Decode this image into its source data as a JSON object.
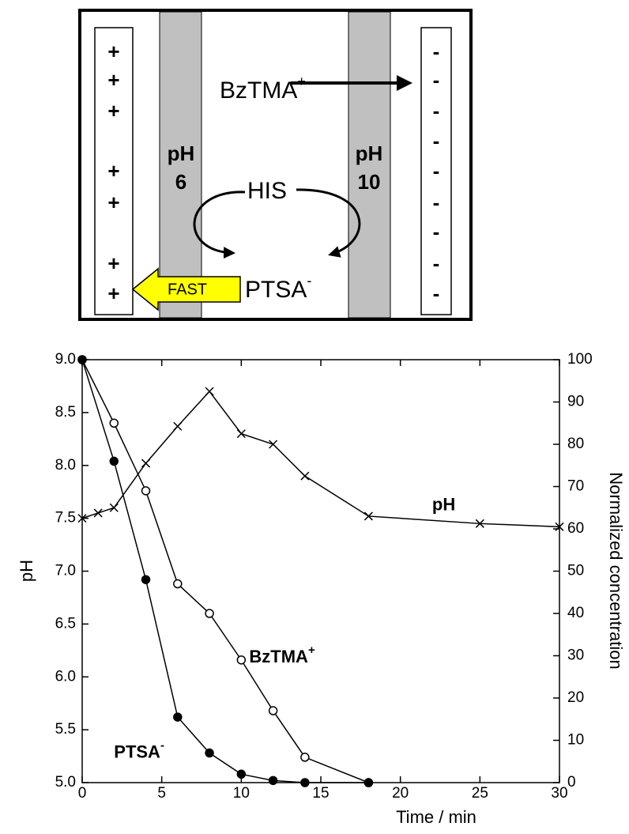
{
  "diagram": {
    "left_signs": [
      "+",
      "+",
      "+",
      "+",
      "+",
      "+",
      "+"
    ],
    "right_signs": [
      "-",
      "-",
      "-",
      "-",
      "-",
      "-",
      "-",
      "-",
      "-"
    ],
    "left_band": [
      "pH",
      "6"
    ],
    "right_band": [
      "pH",
      "10"
    ],
    "cation": {
      "text": "BzTMA",
      "sup": "+"
    },
    "zwitterion": "HIS",
    "anion": {
      "text": "PTSA",
      "sup": "-"
    },
    "arrow_label": "FAST"
  },
  "chart_data": {
    "type": "line",
    "xlabel": "Time / min",
    "ylabel": "pH",
    "y2label": "Normalized concentration",
    "xlim": [
      0,
      30
    ],
    "xticks": [
      0,
      5,
      10,
      15,
      20,
      25,
      30
    ],
    "ylim": [
      5,
      9
    ],
    "yticks": [
      {
        "value": 5,
        "label": "5.0"
      },
      {
        "value": 5.5,
        "label": "5.5"
      },
      {
        "value": 6,
        "label": "6.0"
      },
      {
        "value": 6.5,
        "label": "6.5"
      },
      {
        "value": 7,
        "label": "7.0"
      },
      {
        "value": 7.5,
        "label": "7.5"
      },
      {
        "value": 8,
        "label": "8.0"
      },
      {
        "value": 8.5,
        "label": "8.5"
      },
      {
        "value": 9,
        "label": "9.0"
      }
    ],
    "y2lim": [
      0,
      100
    ],
    "y2ticks": [
      0,
      10,
      20,
      30,
      40,
      50,
      60,
      70,
      80,
      90,
      100
    ],
    "series": [
      {
        "name": "pH",
        "axis": "y",
        "marker": "cross",
        "color": "#000000",
        "x": [
          0,
          1,
          2,
          4,
          6,
          8,
          10,
          12,
          14,
          18,
          25,
          30
        ],
        "values": [
          7.5,
          7.55,
          7.6,
          8.02,
          8.37,
          8.7,
          8.3,
          8.2,
          7.9,
          7.52,
          7.45,
          7.42
        ]
      },
      {
        "name": "BzTMA",
        "name_sup": "+",
        "axis": "y2",
        "marker": "open-circle",
        "color": "#000000",
        "x": [
          0,
          2,
          4,
          6,
          8,
          10,
          12,
          14,
          18
        ],
        "values": [
          100,
          85,
          69,
          47,
          40,
          29,
          17,
          6,
          0
        ]
      },
      {
        "name": "PTSA",
        "name_sup": "-",
        "axis": "y2",
        "marker": "filled-circle",
        "color": "#000000",
        "x": [
          0,
          2,
          4,
          6,
          8,
          10,
          12,
          14,
          18
        ],
        "values": [
          100,
          76,
          48,
          15.5,
          7,
          2,
          0.5,
          0,
          0
        ]
      }
    ]
  }
}
